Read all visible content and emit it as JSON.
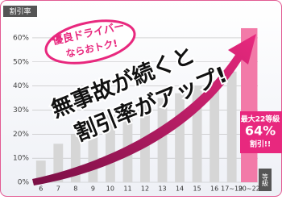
{
  "chart_data": {
    "type": "bar",
    "y_label": "割引率",
    "x_label": "等級",
    "categories": [
      "6",
      "7",
      "8",
      "9",
      "10",
      "11",
      "12",
      "13",
      "14",
      "15",
      "16",
      "17~19",
      "20~22"
    ],
    "values": [
      9,
      16,
      20,
      24,
      28,
      30,
      33,
      35,
      37,
      40,
      42,
      46,
      64
    ],
    "value_labels": [
      null,
      null,
      null,
      null,
      null,
      null,
      null,
      null,
      null,
      null,
      null,
      null,
      "64%"
    ],
    "colors": [
      "#d6d6d6",
      "#d6d6d6",
      "#d6d6d6",
      "#d6d6d6",
      "#d6d6d6",
      "#d6d6d6",
      "#d6d6d6",
      "#d6d6d6",
      "#d6d6d6",
      "#d6d6d6",
      "#d6d6d6",
      "#d6d6d6",
      "#f27aa8"
    ],
    "ylim": [
      0,
      66
    ],
    "yticks": [
      {
        "value": 0,
        "label": "0%"
      },
      {
        "value": 10,
        "label": "10%"
      },
      {
        "value": 20,
        "label": "20%"
      },
      {
        "value": 30,
        "label": "30%"
      },
      {
        "value": 40,
        "label": "40%"
      },
      {
        "value": 50,
        "label": "50%"
      },
      {
        "value": 60,
        "label": "60%"
      }
    ],
    "grid": true,
    "badge": [
      "優良ドライバー",
      "ならおトク!"
    ],
    "headline": [
      "無事故が続くと",
      "割引率がアップ!"
    ],
    "callout": [
      "最大22等級",
      "割引!!"
    ]
  }
}
